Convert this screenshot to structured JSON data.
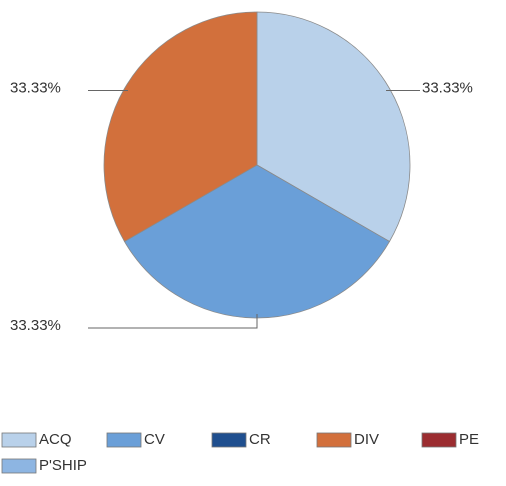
{
  "chart_data": {
    "type": "pie",
    "categories": [
      "ACQ",
      "CV",
      "CR",
      "DIV",
      "PE",
      "P'SHIP"
    ],
    "values": [
      33.33,
      33.33,
      0,
      33.33,
      0,
      0
    ],
    "value_labels": [
      "33.33%",
      "33.33%",
      null,
      "33.33%",
      null,
      null
    ],
    "colors": [
      "#b9d1ea",
      "#6a9fd8",
      "#1f4f8f",
      "#d2703c",
      "#9b2c30",
      "#8db5e2"
    ],
    "legend": "bottom"
  }
}
